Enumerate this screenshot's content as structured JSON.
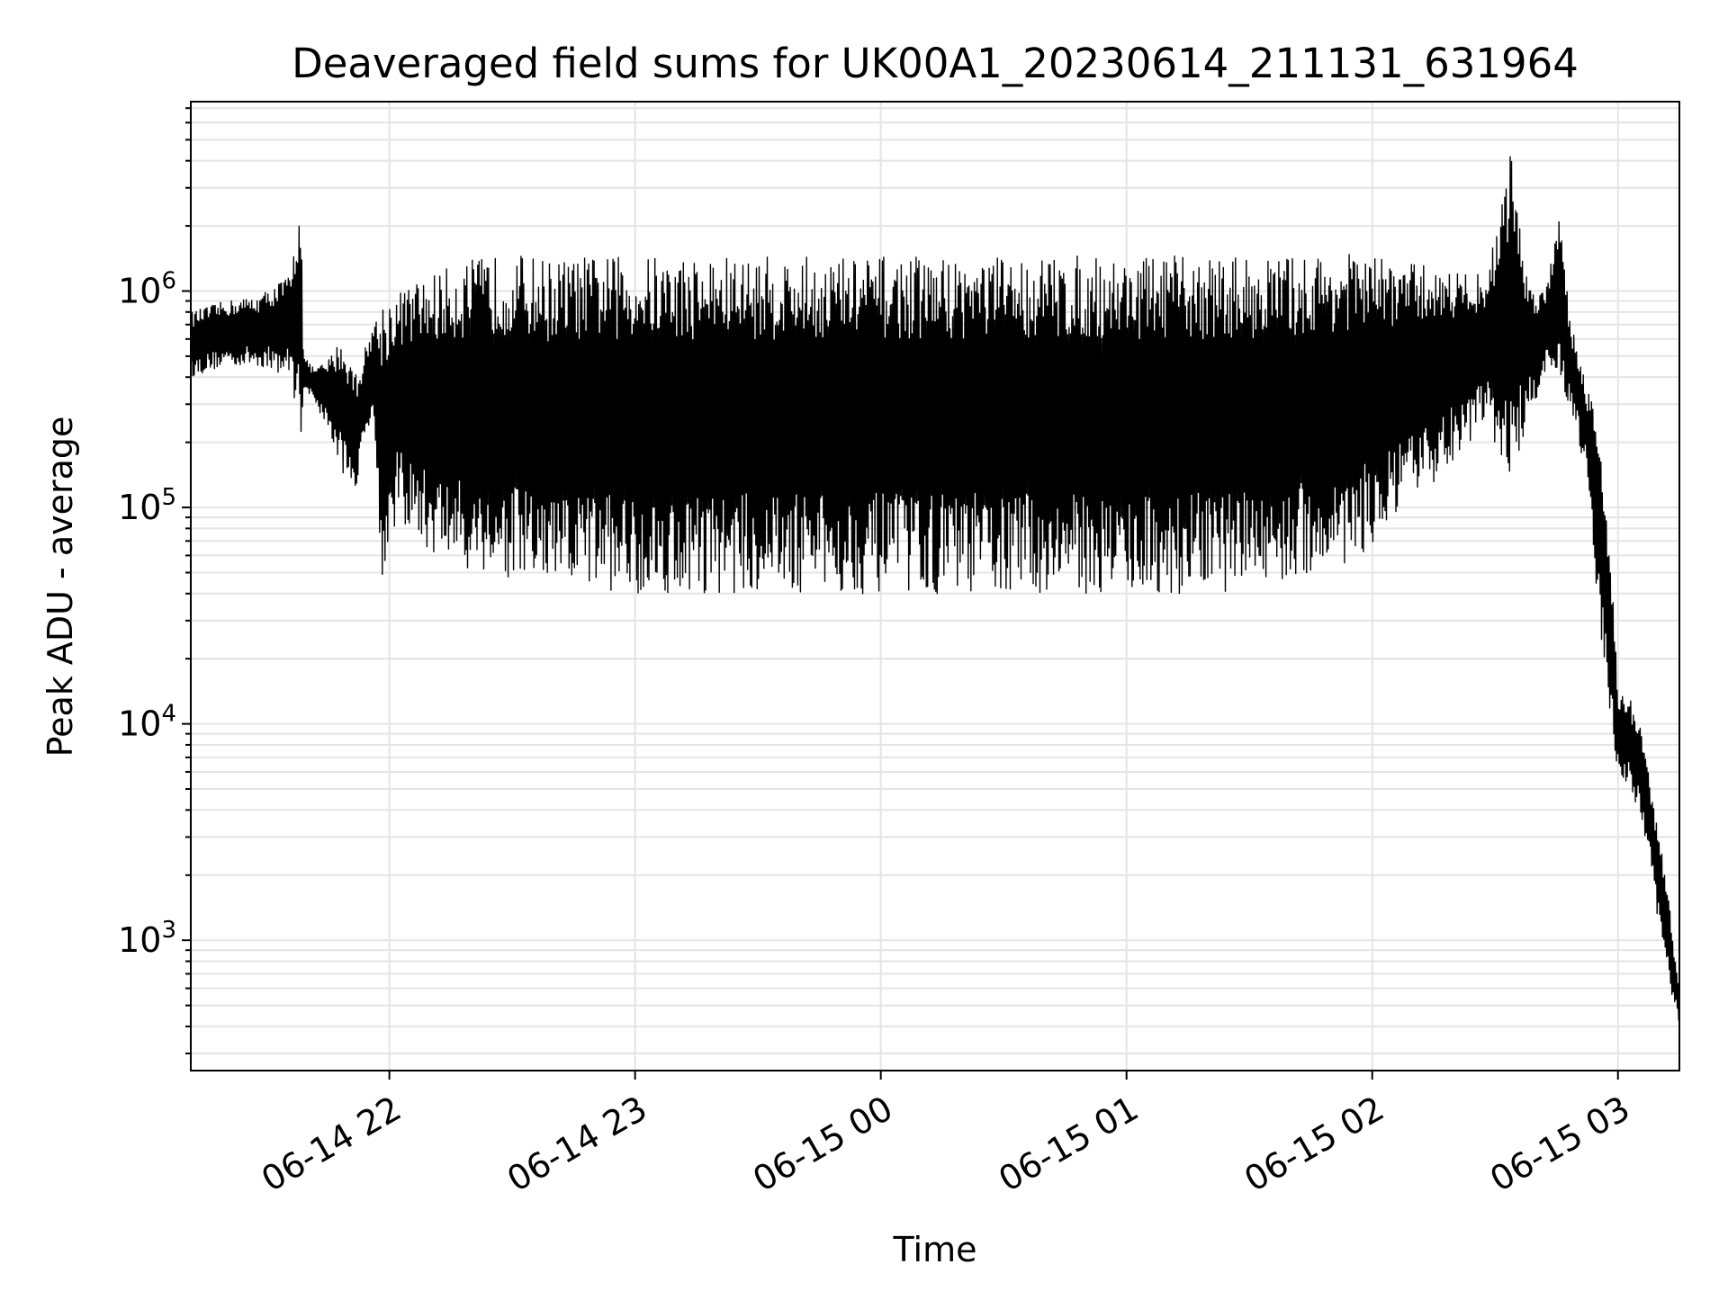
{
  "chart_data": {
    "type": "line",
    "title": "Deaveraged field sums for UK00A1_20230614_211131_631964",
    "xlabel": "Time",
    "ylabel": "Peak ADU - average",
    "y_scale": "log",
    "grid": true,
    "legend": "none",
    "xlim": [
      "2023-06-14 21:11:31",
      "2023-06-15 03:15:00"
    ],
    "ylim": [
      250,
      750000
    ],
    "x_ticks": [
      {
        "label": "06-14 22",
        "value": "2023-06-14 22:00:00"
      },
      {
        "label": "06-14 23",
        "value": "2023-06-14 23:00:00"
      },
      {
        "label": "06-15 00",
        "value": "2023-06-15 00:00:00"
      },
      {
        "label": "06-15 01",
        "value": "2023-06-15 01:00:00"
      },
      {
        "label": "06-15 02",
        "value": "2023-06-15 02:00:00"
      },
      {
        "label": "06-15 03",
        "value": "2023-06-15 03:00:00"
      }
    ],
    "y_ticks": [
      {
        "base": "10",
        "exp": "3",
        "value": 1000
      },
      {
        "base": "10",
        "exp": "4",
        "value": 10000
      },
      {
        "base": "10",
        "exp": "5",
        "value": 100000
      },
      {
        "base": "10",
        "exp": "6",
        "value": 1000000
      }
    ],
    "series": [
      {
        "color": "#000000",
        "x": [
          "2023-06-14 21:11:31",
          "2023-06-14 21:20:00",
          "2023-06-14 21:28:00",
          "2023-06-14 21:36:00",
          "2023-06-14 21:38:30",
          "2023-06-14 21:39:00",
          "2023-06-14 21:40:00",
          "2023-06-14 21:40:30",
          "2023-06-14 21:42:00",
          "2023-06-14 21:45:00",
          "2023-06-14 21:48:00",
          "2023-06-14 21:52:00",
          "2023-06-14 21:56:00",
          "2023-06-14 21:58:00",
          "2023-06-14 22:02:00",
          "2023-06-14 22:10:00",
          "2023-06-14 22:20:00",
          "2023-06-14 22:30:00",
          "2023-06-14 22:40:00",
          "2023-06-14 22:50:00",
          "2023-06-14 23:00:00",
          "2023-06-14 23:20:00",
          "2023-06-14 23:40:00",
          "2023-06-15 00:00:00",
          "2023-06-15 00:20:00",
          "2023-06-15 00:40:00",
          "2023-06-15 01:00:00",
          "2023-06-15 01:20:00",
          "2023-06-15 01:40:00",
          "2023-06-15 01:55:00",
          "2023-06-15 02:05:00",
          "2023-06-15 02:15:00",
          "2023-06-15 02:24:00",
          "2023-06-15 02:28:00",
          "2023-06-15 02:34:00",
          "2023-06-15 02:38:00",
          "2023-06-15 02:42:00",
          "2023-06-15 02:46:00",
          "2023-06-15 02:48:00",
          "2023-06-15 02:52:00",
          "2023-06-15 02:55:00",
          "2023-06-15 02:58:00",
          "2023-06-15 03:00:00",
          "2023-06-15 03:03:00",
          "2023-06-15 03:06:00",
          "2023-06-15 03:09:00",
          "2023-06-15 03:12:00",
          "2023-06-15 03:15:00"
        ],
        "hi": [
          800000,
          900000,
          950000,
          1200000,
          3100000,
          500000,
          480000,
          460000,
          440000,
          480000,
          600000,
          420000,
          700000,
          900000,
          1000000,
          1200000,
          1400000,
          1500000,
          1400000,
          1450000,
          1450000,
          1450000,
          1450000,
          1450000,
          1450000,
          1450000,
          1450000,
          1450000,
          1450000,
          1500000,
          1400000,
          1300000,
          1200000,
          1200000,
          4600000,
          1100000,
          1000000,
          2700000,
          800000,
          400000,
          250000,
          80000,
          14000,
          13000,
          9000,
          4000,
          1800,
          600
        ],
        "lo": [
          400000,
          450000,
          450000,
          400000,
          200000,
          350000,
          350000,
          330000,
          300000,
          230000,
          150000,
          120000,
          300000,
          45000,
          90000,
          60000,
          50000,
          45000,
          40000,
          42000,
          40000,
          40000,
          40000,
          40000,
          40000,
          40000,
          40000,
          40000,
          45000,
          55000,
          80000,
          130000,
          200000,
          250000,
          120000,
          250000,
          400000,
          350000,
          300000,
          150000,
          35000,
          10000,
          6000,
          5000,
          3500,
          1500,
          700,
          380
        ]
      }
    ]
  }
}
